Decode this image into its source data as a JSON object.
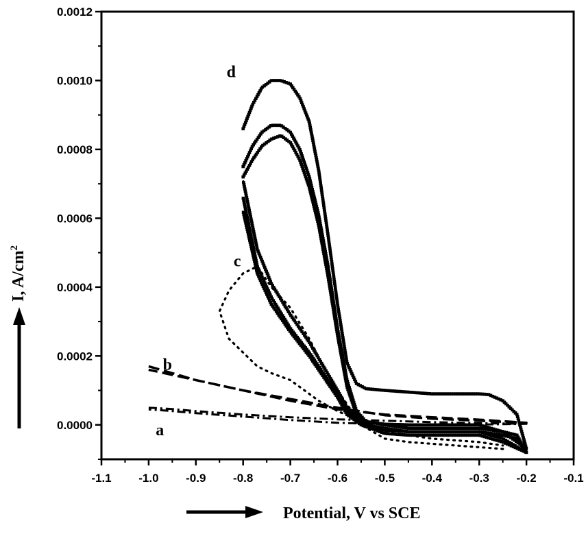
{
  "chart_data": {
    "type": "line",
    "xlabel": "Potential, V vs SCE",
    "ylabel": "I, A/cm",
    "ylabel_sup": "2",
    "xlim": [
      -1.1,
      -0.1
    ],
    "ylim": [
      -0.0001,
      0.0012
    ],
    "xticks": [
      -1.1,
      -1.0,
      -0.9,
      -0.8,
      -0.7,
      -0.6,
      -0.5,
      -0.4,
      -0.3,
      -0.2,
      -0.1
    ],
    "xtick_labels": [
      "-1.1",
      "-1.0",
      "-0.9",
      "-0.8",
      "-0.7",
      "-0.6",
      "-0.5",
      "-0.4",
      "-0.3",
      "-0.2",
      "-0.1"
    ],
    "yticks": [
      0,
      0.0002,
      0.0004,
      0.0006,
      0.0008,
      0.001,
      0.0012
    ],
    "ytick_labels": [
      "0.0000",
      "0.0002",
      "0.0004",
      "0.0006",
      "0.0008",
      "0.0010",
      "0.0012"
    ],
    "grid": false,
    "series": [
      {
        "label": "a",
        "style": "dash-dot",
        "label_pos": [
          -0.985,
          -3e-05
        ],
        "x": [
          -1.0,
          -0.95,
          -0.9,
          -0.8,
          -0.7,
          -0.6,
          -0.5,
          -0.4,
          -0.3,
          -0.2,
          -0.3,
          -0.4,
          -0.5,
          -0.6,
          -0.7,
          -0.8,
          -0.9,
          -0.95,
          -1.0
        ],
        "y": [
          5e-05,
          4.6e-05,
          4e-05,
          3e-05,
          2.2e-05,
          1.6e-05,
          1.2e-05,
          8e-06,
          5e-06,
          3e-06,
          1e-06,
          1e-06,
          2e-06,
          6e-06,
          1.4e-05,
          2.4e-05,
          3.4e-05,
          4e-05,
          4.5e-05
        ]
      },
      {
        "label": "b",
        "style": "dashed",
        "label_pos": [
          -0.97,
          0.00016
        ],
        "x": [
          -1.0,
          -0.95,
          -0.9,
          -0.8,
          -0.7,
          -0.6,
          -0.5,
          -0.4,
          -0.3,
          -0.2,
          -0.3,
          -0.4,
          -0.5,
          -0.6,
          -0.7,
          -0.8,
          -0.9,
          -0.95,
          -1.0
        ],
        "y": [
          0.00017,
          0.00015,
          0.00013,
          0.0001,
          7.5e-05,
          5e-05,
          2.8e-05,
          1.8e-05,
          1.2e-05,
          6e-06,
          1.5e-05,
          2.2e-05,
          3e-05,
          4.5e-05,
          7e-05,
          0.0001,
          0.00013,
          0.000145,
          0.00016
        ]
      },
      {
        "label": "c",
        "style": "dotted",
        "label_pos": [
          -0.82,
          0.00046
        ],
        "x": [
          -0.25,
          -0.35,
          -0.45,
          -0.5,
          -0.55,
          -0.6,
          -0.63,
          -0.66,
          -0.7,
          -0.74,
          -0.77,
          -0.8,
          -0.83,
          -0.85,
          -0.83,
          -0.8,
          -0.77,
          -0.74,
          -0.7,
          -0.67,
          -0.64,
          -0.6,
          -0.55,
          -0.5,
          -0.4,
          -0.3,
          -0.25
        ],
        "y": [
          -7e-05,
          -6e-05,
          -5e-05,
          -4e-05,
          0.0,
          0.0001,
          0.00017,
          0.00025,
          0.00034,
          0.0004,
          0.00046,
          0.00044,
          0.00039,
          0.00033,
          0.00025,
          0.00021,
          0.00017,
          0.00015,
          0.00013,
          0.0001,
          7e-05,
          4e-05,
          1e-05,
          -2e-05,
          -4e-05,
          -5e-05,
          -6e-05
        ]
      },
      {
        "label": "d",
        "style": "marker-line",
        "label_pos": [
          -0.835,
          0.00101
        ],
        "x": [
          -0.8,
          -0.78,
          -0.76,
          -0.74,
          -0.72,
          -0.7,
          -0.68,
          -0.66,
          -0.64,
          -0.62,
          -0.6,
          -0.58,
          -0.56,
          -0.54,
          -0.5,
          -0.45,
          -0.4,
          -0.35,
          -0.3,
          -0.28,
          -0.25,
          -0.22,
          -0.2,
          -0.25,
          -0.3,
          -0.35,
          -0.4,
          -0.45,
          -0.5,
          -0.55,
          -0.58,
          -0.6,
          -0.63,
          -0.66,
          -0.7,
          -0.74,
          -0.77,
          -0.8
        ],
        "y": [
          0.00086,
          0.00093,
          0.00098,
          0.001,
          0.001,
          0.00099,
          0.00095,
          0.00088,
          0.00074,
          0.00055,
          0.00035,
          0.00018,
          0.00012,
          0.000105,
          0.0001,
          9.5e-05,
          9e-05,
          9e-05,
          9e-05,
          8.8e-05,
          7e-05,
          3e-05,
          -7e-05,
          -2e-05,
          0.0,
          0.0,
          0.0,
          0.0,
          2e-06,
          1e-05,
          5e-05,
          0.0001,
          0.00017,
          0.00024,
          0.00032,
          0.00041,
          0.00051,
          0.00071
        ]
      },
      {
        "label": "",
        "style": "marker-line",
        "x": [
          -0.8,
          -0.78,
          -0.76,
          -0.74,
          -0.72,
          -0.7,
          -0.68,
          -0.66,
          -0.64,
          -0.62,
          -0.6,
          -0.58,
          -0.56,
          -0.54,
          -0.5,
          -0.45,
          -0.4,
          -0.35,
          -0.3,
          -0.25,
          -0.22,
          -0.2,
          -0.25,
          -0.3,
          -0.35,
          -0.4,
          -0.45,
          -0.5,
          -0.55,
          -0.58,
          -0.6,
          -0.63,
          -0.66,
          -0.7,
          -0.74,
          -0.77,
          -0.8
        ],
        "y": [
          0.00075,
          0.00081,
          0.00085,
          0.00087,
          0.00087,
          0.00085,
          0.0008,
          0.00072,
          0.00061,
          0.00046,
          0.00028,
          0.00013,
          4e-05,
          1e-05,
          0.0,
          -1e-05,
          -1e-05,
          -1e-05,
          -1e-05,
          -2e-05,
          -3e-05,
          -8e-05,
          -4e-05,
          -2e-05,
          -2e-05,
          -2e-05,
          -2e-05,
          -1.5e-05,
          5e-06,
          4e-05,
          9e-05,
          0.00015,
          0.00021,
          0.00028,
          0.00037,
          0.00046,
          0.00066
        ]
      },
      {
        "label": "",
        "style": "marker-line",
        "x": [
          -0.8,
          -0.78,
          -0.76,
          -0.74,
          -0.72,
          -0.7,
          -0.68,
          -0.66,
          -0.64,
          -0.62,
          -0.6,
          -0.58,
          -0.56,
          -0.54,
          -0.5,
          -0.45,
          -0.4,
          -0.35,
          -0.3,
          -0.25,
          -0.22,
          -0.2,
          -0.25,
          -0.3,
          -0.35,
          -0.4,
          -0.45,
          -0.5,
          -0.55,
          -0.58,
          -0.6,
          -0.63,
          -0.66,
          -0.7,
          -0.74,
          -0.77,
          -0.8
        ],
        "y": [
          0.00072,
          0.00077,
          0.00081,
          0.00083,
          0.00084,
          0.00082,
          0.00077,
          0.00069,
          0.00058,
          0.00043,
          0.00026,
          0.00011,
          3e-05,
          0.0,
          -1e-05,
          -2e-05,
          -2e-05,
          -2e-05,
          -2e-05,
          -3e-05,
          -4e-05,
          -8e-05,
          -5e-05,
          -3e-05,
          -3e-05,
          -3e-05,
          -3e-05,
          -2.5e-05,
          0.0,
          3e-05,
          8e-05,
          0.00014,
          0.0002,
          0.00027,
          0.00035,
          0.00044,
          0.00062
        ]
      }
    ]
  }
}
